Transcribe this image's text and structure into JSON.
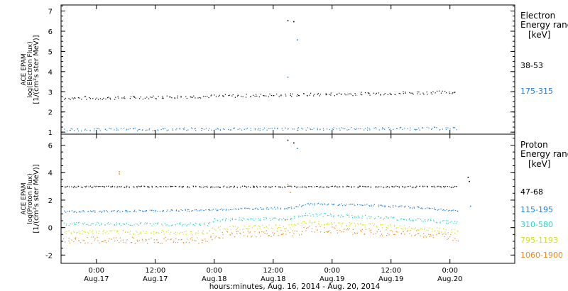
{
  "chart_data": [
    {
      "type": "scatter",
      "ylabel_lines": [
        "ACE EPAM",
        "log(Electron Flux)",
        "[1/(cm²s ster MeV)]"
      ],
      "ylim": [
        0.9,
        7.3
      ],
      "yticks": [
        1,
        2,
        3,
        4,
        5,
        6,
        7
      ],
      "legend_title": [
        "Electron",
        "Energy range",
        "[keV]"
      ],
      "series": [
        {
          "name": "38-53",
          "color": "#000000",
          "base": 2.7,
          "rise": 0.3,
          "noise": 0.08
        },
        {
          "name": "175-315",
          "color": "#1f7fd6",
          "base": 1.15,
          "rise": 0.05,
          "noise": 0.07
        }
      ],
      "spikes": [
        {
          "day": 1.62,
          "value": 6.55,
          "color": "#000000"
        },
        {
          "day": 1.67,
          "value": 6.5,
          "color": "#000000"
        },
        {
          "day": 1.7,
          "value": 5.6,
          "color": "#1f7fd6"
        },
        {
          "day": 1.62,
          "value": 3.75,
          "color": "#1f7fd6"
        }
      ]
    },
    {
      "type": "scatter",
      "ylabel_lines": [
        "ACE EPAM",
        "log(Proton Flux)",
        "[1/(cm²s ster MeV)]"
      ],
      "ylim": [
        -2.6,
        6.8
      ],
      "yticks": [
        -2,
        0,
        2,
        4,
        6
      ],
      "legend_title": [
        "Proton",
        "Energy range",
        "[keV]"
      ],
      "series": [
        {
          "name": "47-68",
          "color": "#000000",
          "base": 3.0,
          "noise": 0.05
        },
        {
          "name": "115-195",
          "color": "#1f7fd6",
          "base": 1.2,
          "noise": 0.07,
          "profile": [
            [
              0.0,
              1.2
            ],
            [
              0.92,
              1.3
            ],
            [
              1.2,
              1.4
            ],
            [
              1.65,
              1.45
            ],
            [
              1.78,
              1.75
            ],
            [
              2.3,
              1.65
            ],
            [
              2.7,
              1.5
            ],
            [
              3.1,
              1.2
            ],
            [
              3.6,
              1.25
            ]
          ]
        },
        {
          "name": "310-580",
          "color": "#2ad1c9",
          "base": 0.4,
          "noise": 0.12,
          "profile": [
            [
              0.0,
              0.3
            ],
            [
              0.92,
              0.25
            ],
            [
              1.0,
              0.6
            ],
            [
              1.65,
              0.7
            ],
            [
              1.78,
              1.0
            ],
            [
              2.3,
              0.8
            ],
            [
              2.7,
              0.6
            ],
            [
              3.1,
              0.35
            ],
            [
              3.6,
              0.3
            ]
          ]
        },
        {
          "name": "795-1193",
          "color": "#d2e210",
          "base": -0.2,
          "noise": 0.15,
          "profile": [
            [
              0.0,
              -0.3
            ],
            [
              0.92,
              -0.35
            ],
            [
              1.0,
              0.0
            ],
            [
              1.65,
              0.1
            ],
            [
              1.78,
              0.4
            ],
            [
              2.3,
              0.2
            ],
            [
              2.7,
              0.0
            ],
            [
              3.1,
              -0.3
            ],
            [
              3.6,
              -0.4
            ]
          ]
        },
        {
          "name": "1060-1900",
          "color": "#e5891a",
          "base": -0.8,
          "noise": 0.25,
          "profile": [
            [
              0.0,
              -0.9
            ],
            [
              0.92,
              -0.9
            ],
            [
              1.0,
              -0.5
            ],
            [
              1.65,
              -0.4
            ],
            [
              1.78,
              -0.1
            ],
            [
              2.3,
              -0.3
            ],
            [
              2.7,
              -0.4
            ],
            [
              3.1,
              -0.75
            ],
            [
              3.6,
              -0.85
            ]
          ]
        }
      ],
      "spikes": [
        {
          "day": 0.19,
          "value": 4.1,
          "color": "#e5891a"
        },
        {
          "day": 0.19,
          "value": 3.95,
          "color": "#e5891a"
        },
        {
          "day": 1.62,
          "value": 6.4,
          "color": "#000000"
        },
        {
          "day": 1.67,
          "value": 6.2,
          "color": "#000000"
        },
        {
          "day": 1.7,
          "value": 5.8,
          "color": "#1f7fd6"
        },
        {
          "day": 1.62,
          "value": 3.2,
          "color": "#e5891a"
        },
        {
          "day": 1.64,
          "value": 2.6,
          "color": "#e5891a"
        },
        {
          "day": 1.6,
          "value": 0.6,
          "color": "#e5891a"
        },
        {
          "day": 3.15,
          "value": 3.7,
          "color": "#000000"
        },
        {
          "day": 3.16,
          "value": 3.4,
          "color": "#000000"
        },
        {
          "day": 3.17,
          "value": 1.6,
          "color": "#1f7fd6"
        }
      ]
    }
  ],
  "x_axis": {
    "tick_times": [
      "0:00",
      "12:00",
      "0:00",
      "12:00",
      "0:00",
      "12:00",
      "0:00"
    ],
    "tick_dates": [
      "Aug.17",
      "Aug.17",
      "Aug.18",
      "Aug.18",
      "Aug.19",
      "Aug.19",
      "Aug.20"
    ],
    "tick_days": [
      0,
      0.5,
      1,
      1.5,
      2,
      2.5,
      3
    ],
    "xlim_days": [
      -0.3,
      3.55
    ],
    "data_end_day": 3.05,
    "xlabel": "hours:minutes, Aug. 16, 2014 - Aug. 20, 2014"
  }
}
